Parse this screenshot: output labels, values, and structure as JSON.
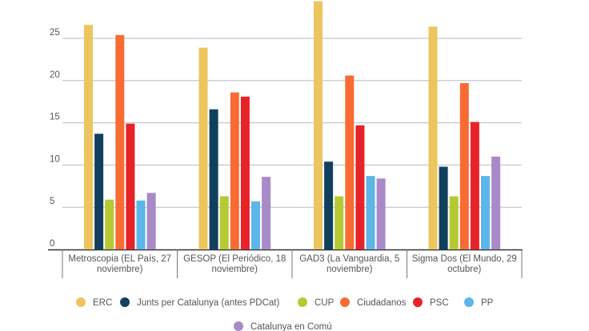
{
  "chart_data": {
    "type": "bar",
    "title": "",
    "xlabel": "",
    "ylabel": "",
    "ylim": [
      0,
      29.5
    ],
    "yticks": [
      0,
      5,
      10,
      15,
      20,
      25
    ],
    "grid": true,
    "legend_position": "bottom",
    "categories": [
      [
        "Metroscopia (EL País, 27",
        "noviembre)"
      ],
      [
        "GESOP (El Periódico, 18",
        "noviembre)"
      ],
      [
        "GAD3 (La Vanguardia, 5",
        "noviembre)"
      ],
      [
        "Sigma Dos (El Mundo, 29",
        "octubre)"
      ]
    ],
    "series": [
      {
        "name": "ERC",
        "color": "#ecc55f",
        "values": [
          26.6,
          23.9,
          29.4,
          26.4
        ]
      },
      {
        "name": "Junts per Catalunya (antes PDCat)",
        "color": "#11405f",
        "values": [
          13.7,
          16.6,
          10.4,
          9.8
        ]
      },
      {
        "name": "CUP",
        "color": "#b5c932",
        "values": [
          5.9,
          6.3,
          6.3,
          6.3
        ]
      },
      {
        "name": "Ciudadanos",
        "color": "#f86b33",
        "values": [
          25.4,
          18.6,
          20.6,
          19.7
        ]
      },
      {
        "name": "PSC",
        "color": "#e82229",
        "values": [
          14.9,
          18.1,
          14.7,
          15.1
        ]
      },
      {
        "name": "PP",
        "color": "#5cb6e8",
        "values": [
          5.8,
          5.7,
          8.7,
          8.7
        ]
      },
      {
        "name": "Catalunya en Comú",
        "color": "#a98ac8",
        "values": [
          6.7,
          8.6,
          8.4,
          11.0
        ]
      }
    ]
  }
}
